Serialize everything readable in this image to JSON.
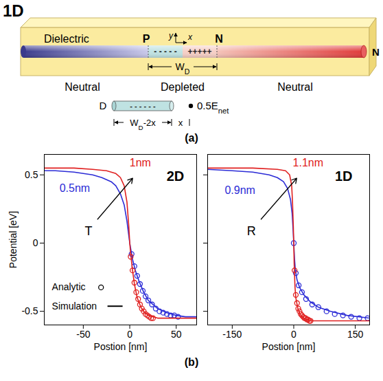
{
  "diagram": {
    "figure_label": "1D",
    "dielectric": "Dielectric",
    "p_label": "P",
    "n_label": "N",
    "axis_y": "y",
    "axis_x": "x",
    "end_label": "N",
    "negative_charge": "- - - - -",
    "positive_charge": "+++++",
    "depletion_width": {
      "main": "W",
      "sub": "D"
    },
    "regions": [
      "Neutral",
      "Depleted",
      "Neutral"
    ],
    "inset": {
      "label": "D",
      "charge": "- - - - - -",
      "width": {
        "main": "W",
        "sub": "D",
        "suffix": "-2x"
      },
      "gap": "x",
      "field": {
        "main": "0.5E",
        "sub": "net"
      }
    },
    "caption": "(a)"
  },
  "caption_b": "(b)",
  "chart_data": [
    {
      "type": "line",
      "title": "2D",
      "x_label": "Postion [nm]",
      "y_label": "Potential [eV]",
      "xlim": [
        -92,
        72
      ],
      "xticks": [
        -50,
        0,
        50
      ],
      "ylim": [
        -0.6,
        0.65
      ],
      "yticks": [
        -0.5,
        0,
        0.5
      ],
      "grid": false,
      "legend": "bottom-left",
      "legend_items": [
        {
          "label": "Analytic",
          "marker": "circle"
        },
        {
          "label": "Simulation",
          "line_style": "solid"
        }
      ],
      "arrow_label": "T",
      "series": [
        {
          "name": "0.5nm",
          "color": "#2b2bd6",
          "simulation": {
            "x": [
              -92,
              -80,
              -60,
              -40,
              -30,
              -20,
              -15,
              -10,
              -6,
              -3,
              0,
              3,
              6,
              10,
              15,
              20,
              30,
              40,
              50,
              60,
              72
            ],
            "values": [
              0.53,
              0.53,
              0.52,
              0.5,
              0.48,
              0.45,
              0.42,
              0.36,
              0.28,
              0.16,
              0,
              -0.12,
              -0.2,
              -0.28,
              -0.36,
              -0.42,
              -0.48,
              -0.51,
              -0.53,
              -0.54,
              -0.54
            ]
          },
          "analytic": {
            "x": [
              2,
              5,
              8,
              11,
              14,
              17,
              20,
              24,
              28,
              32,
              36,
              40,
              44,
              48,
              52
            ],
            "values": [
              -0.08,
              -0.17,
              -0.24,
              -0.3,
              -0.35,
              -0.39,
              -0.42,
              -0.45,
              -0.48,
              -0.5,
              -0.51,
              -0.52,
              -0.53,
              -0.53,
              -0.54
            ]
          }
        },
        {
          "name": "1nm",
          "color": "#e02020",
          "simulation": {
            "x": [
              -92,
              -60,
              -40,
              -25,
              -15,
              -10,
              -6,
              -3,
              -1,
              0,
              1,
              3,
              5,
              8,
              12,
              16,
              20,
              25,
              30,
              40,
              72
            ],
            "values": [
              0.55,
              0.55,
              0.54,
              0.53,
              0.51,
              0.48,
              0.42,
              0.3,
              0.12,
              0,
              -0.08,
              -0.2,
              -0.3,
              -0.4,
              -0.47,
              -0.51,
              -0.53,
              -0.54,
              -0.55,
              -0.55,
              -0.55
            ]
          },
          "analytic": {
            "x": [
              1,
              3,
              5,
              7,
              9,
              11,
              13,
              15,
              17,
              19,
              21,
              23,
              25
            ],
            "values": [
              -0.1,
              -0.2,
              -0.29,
              -0.36,
              -0.41,
              -0.45,
              -0.48,
              -0.5,
              -0.52,
              -0.53,
              -0.54,
              -0.55,
              -0.55
            ]
          }
        }
      ]
    },
    {
      "type": "line",
      "title": "1D",
      "x_label": "Postion [nm]",
      "xlim": [
        -210,
        185
      ],
      "xticks": [
        -150,
        0,
        150
      ],
      "ylim": [
        -0.6,
        0.65
      ],
      "yticks": [
        -0.5,
        0,
        0.5
      ],
      "grid": false,
      "tick_labels": "x",
      "arrow_label": "R",
      "series": [
        {
          "name": "0.9nm",
          "color": "#2b2bd6",
          "simulation": {
            "x": [
              -210,
              -150,
              -100,
              -60,
              -40,
              -25,
              -15,
              -8,
              -4,
              -2,
              0,
              2,
              4,
              8,
              15,
              25,
              40,
              60,
              90,
              130,
              185
            ],
            "values": [
              0.54,
              0.53,
              0.52,
              0.5,
              0.48,
              0.45,
              0.4,
              0.32,
              0.22,
              0.12,
              0,
              -0.12,
              -0.2,
              -0.27,
              -0.33,
              -0.38,
              -0.43,
              -0.47,
              -0.5,
              -0.53,
              -0.55
            ]
          },
          "analytic": {
            "x": [
              0,
              5,
              12,
              20,
              30,
              45,
              60,
              80,
              100,
              120,
              140,
              160,
              180
            ],
            "values": [
              0,
              -0.22,
              -0.31,
              -0.36,
              -0.41,
              -0.45,
              -0.47,
              -0.5,
              -0.52,
              -0.53,
              -0.54,
              -0.55,
              -0.55
            ]
          }
        },
        {
          "name": "1.1nm",
          "color": "#e02020",
          "simulation": {
            "x": [
              -210,
              -100,
              -40,
              -20,
              -10,
              -5,
              -3,
              -1,
              0,
              1,
              3,
              5,
              10,
              15,
              20,
              30,
              40,
              80,
              185
            ],
            "values": [
              0.55,
              0.55,
              0.54,
              0.53,
              0.5,
              0.42,
              0.3,
              0.12,
              0,
              -0.15,
              -0.32,
              -0.4,
              -0.48,
              -0.52,
              -0.54,
              -0.56,
              -0.57,
              -0.57,
              -0.57
            ]
          },
          "analytic": {
            "x": [
              2,
              5,
              8,
              11,
              14,
              17,
              20,
              23,
              26,
              29,
              32,
              35,
              38,
              41
            ],
            "values": [
              -0.2,
              -0.38,
              -0.44,
              -0.48,
              -0.5,
              -0.52,
              -0.53,
              -0.54,
              -0.55,
              -0.55,
              -0.56,
              -0.56,
              -0.57,
              -0.57
            ]
          }
        }
      ]
    }
  ]
}
